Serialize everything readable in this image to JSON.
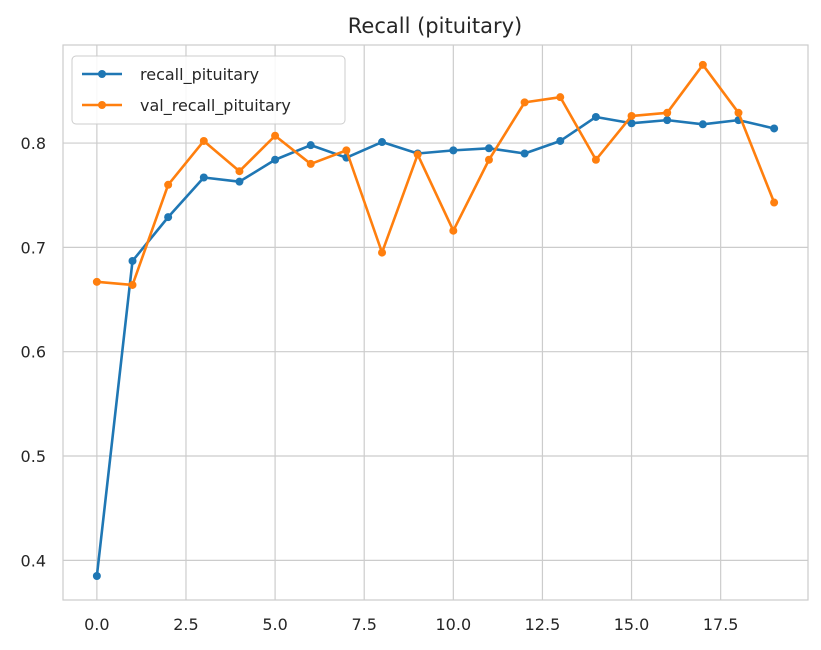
{
  "chart_data": {
    "type": "line",
    "title": "Recall (pituitary)",
    "xlabel": "",
    "ylabel": "",
    "xlim": [
      -0.95,
      19.95
    ],
    "ylim": [
      0.362,
      0.894
    ],
    "xticks": [
      0,
      2.5,
      5,
      7.5,
      10,
      12.5,
      15,
      17.5
    ],
    "xtick_labels": [
      "0.0",
      "2.5",
      "5.0",
      "7.5",
      "10.0",
      "12.5",
      "15.0",
      "17.5"
    ],
    "yticks": [
      0.4,
      0.5,
      0.6,
      0.7,
      0.8
    ],
    "ytick_labels": [
      "0.4",
      "0.5",
      "0.6",
      "0.7",
      "0.8"
    ],
    "grid": true,
    "legend_position": "top-left",
    "x": [
      0,
      1,
      2,
      3,
      4,
      5,
      6,
      7,
      8,
      9,
      10,
      11,
      12,
      13,
      14,
      15,
      16,
      17,
      18,
      19
    ],
    "series": [
      {
        "name": "recall_pituitary",
        "color": "#1f77b4",
        "values": [
          0.385,
          0.687,
          0.729,
          0.767,
          0.763,
          0.784,
          0.798,
          0.786,
          0.801,
          0.79,
          0.793,
          0.795,
          0.79,
          0.802,
          0.825,
          0.819,
          0.822,
          0.818,
          0.822,
          0.814
        ]
      },
      {
        "name": "val_recall_pituitary",
        "color": "#ff7f0e",
        "values": [
          0.667,
          0.664,
          0.76,
          0.802,
          0.773,
          0.807,
          0.78,
          0.793,
          0.695,
          0.789,
          0.716,
          0.784,
          0.839,
          0.844,
          0.784,
          0.826,
          0.829,
          0.875,
          0.829,
          0.743
        ]
      }
    ]
  }
}
